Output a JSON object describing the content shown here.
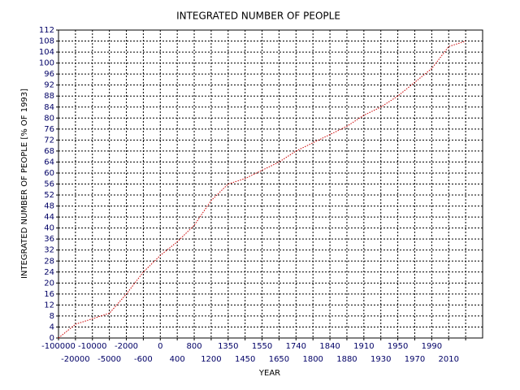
{
  "chart_data": {
    "type": "line",
    "title": "INTEGRATED NUMBER OF PEOPLE",
    "xlabel": "YEAR",
    "ylabel": "INTEGRATED NUMBER OF PEOPLE  [% OF 1993]",
    "categories": [
      "-100000",
      "-20000",
      "-10000",
      "-5000",
      "-2000",
      "-600",
      "0",
      "400",
      "800",
      "1200",
      "1350",
      "1450",
      "1550",
      "1650",
      "1740",
      "1800",
      "1840",
      "1880",
      "1910",
      "1930",
      "1950",
      "1970",
      "1990",
      "2010",
      null
    ],
    "series": [
      {
        "name": "integrated",
        "color": "#cc0000",
        "values": [
          0,
          5,
          7,
          9,
          16,
          24,
          30,
          35,
          41,
          50,
          56,
          58,
          61,
          64,
          68,
          71,
          74,
          77,
          81,
          84,
          88,
          93,
          98,
          106,
          108
        ]
      }
    ],
    "ylim": [
      0,
      112
    ],
    "yticks": [
      0,
      4,
      8,
      12,
      16,
      20,
      24,
      28,
      32,
      36,
      40,
      44,
      48,
      52,
      56,
      60,
      64,
      68,
      72,
      76,
      80,
      84,
      88,
      92,
      96,
      100,
      104,
      108,
      112
    ],
    "grid": true
  }
}
